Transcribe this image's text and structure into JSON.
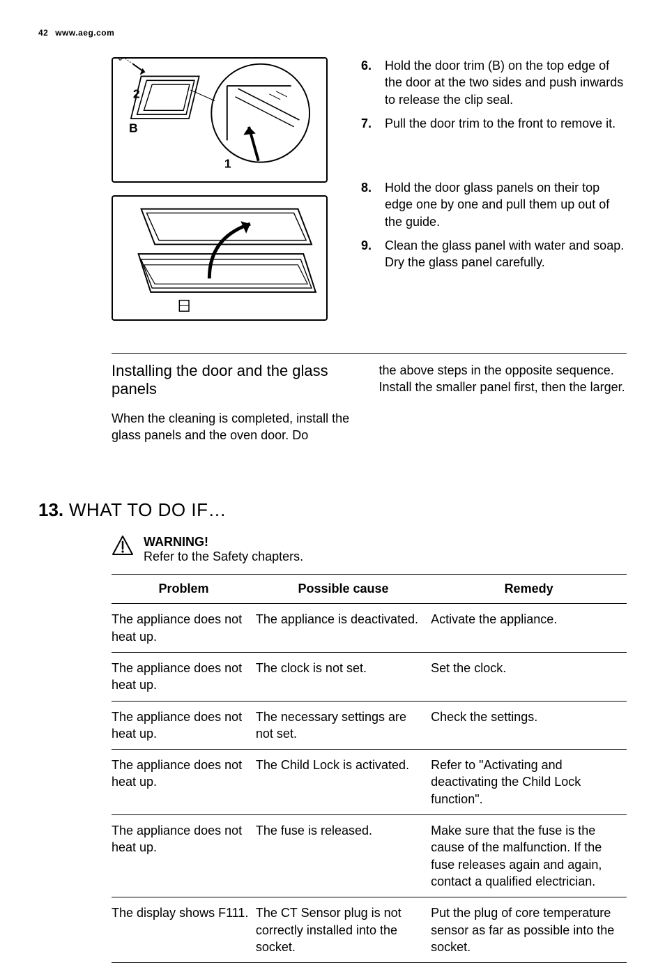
{
  "header": {
    "page_number": "42",
    "url": "www.aeg.com"
  },
  "steps_top": [
    {
      "num": "6.",
      "text": "Hold the door trim (B) on the top edge of the door at the two sides and push inwards to release the clip seal."
    },
    {
      "num": "7.",
      "text": "Pull the door trim to the front to remove it."
    }
  ],
  "steps_bottom": [
    {
      "num": "8.",
      "text": "Hold the door glass panels on their top edge one by one and pull them up out of the guide."
    },
    {
      "num": "9.",
      "text": "Clean the glass panel with water and soap. Dry the glass panel carefully."
    }
  ],
  "diagram1": {
    "label_B": "B",
    "label_1": "1",
    "label_2": "2"
  },
  "install": {
    "title": "Installing the door and the glass panels",
    "left_text": "When the cleaning is completed, install the glass panels and the oven door. Do",
    "right_text": "the above steps in the opposite sequence. Install the smaller panel first, then the larger."
  },
  "chapter": {
    "number": "13.",
    "title": " WHAT TO DO IF…"
  },
  "warning": {
    "label": "WARNING!",
    "text": "Refer to the Safety chapters."
  },
  "table": {
    "columns": [
      "Problem",
      "Possible cause",
      "Remedy"
    ],
    "rows": [
      [
        "The appliance does not heat up.",
        "The appliance is deactivated.",
        "Activate the appliance."
      ],
      [
        "The appliance does not heat up.",
        "The clock is not set.",
        "Set the clock."
      ],
      [
        "The appliance does not heat up.",
        "The necessary settings are not set.",
        "Check the settings."
      ],
      [
        "The appliance does not heat up.",
        "The Child Lock is activated.",
        "Refer to \"Activating and deactivating the Child Lock function\"."
      ],
      [
        "The appliance does not heat up.",
        "The fuse is released.",
        "Make sure that the fuse is the cause of the malfunction. If the fuse releases again and again, contact a qualified electrician."
      ],
      [
        "The display shows F111.",
        "The CT Sensor plug is not correctly installed into the socket.",
        "Put the plug of core temperature sensor as far as possible into the socket."
      ]
    ]
  },
  "colors": {
    "text": "#000000",
    "background": "#ffffff",
    "border": "#000000"
  }
}
